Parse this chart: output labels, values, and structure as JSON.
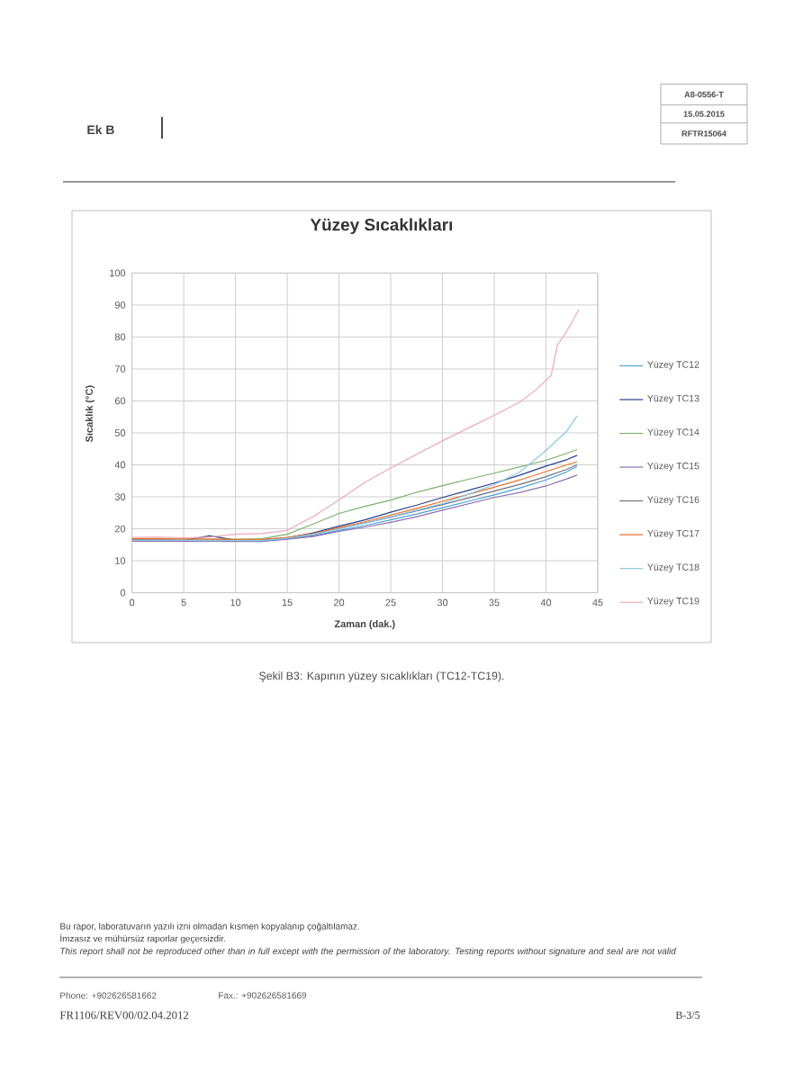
{
  "chart_data": {
    "type": "line",
    "title": "Yüzey Sıcaklıkları",
    "xlabel": "Zaman (dak.)",
    "ylabel": "Sıcaklık (°C)",
    "x": [
      0,
      2.5,
      5,
      7.5,
      10,
      12.5,
      15,
      17.5,
      20,
      22.5,
      25,
      27.5,
      30,
      32.5,
      35,
      37.5,
      40,
      42,
      43
    ],
    "series": [
      {
        "name": "Yüzey TC12",
        "color": "#4f9fd6",
        "values": [
          16.4,
          16.4,
          16.3,
          16.3,
          16.2,
          16.2,
          16.9,
          17.8,
          19.5,
          21,
          22.8,
          24.6,
          26.6,
          28.6,
          30.6,
          32.8,
          35.3,
          37.8,
          39.5
        ]
      },
      {
        "name": "Yüzey TC13",
        "color": "#2a3f8f",
        "values": [
          16.5,
          16.5,
          16.4,
          17.8,
          16.5,
          16.4,
          17.2,
          18.7,
          20.8,
          22.8,
          25.2,
          27.4,
          29.8,
          32,
          34.3,
          36.8,
          39.6,
          41.6,
          43
        ]
      },
      {
        "name": "Yüzey TC14",
        "color": "#7fb070",
        "values": [
          16.6,
          16.6,
          16.5,
          16.5,
          16.7,
          16.9,
          18.3,
          21.5,
          24.8,
          27,
          29,
          31.4,
          33.5,
          35.5,
          37.4,
          39.4,
          41.4,
          43.6,
          44.8
        ]
      },
      {
        "name": "Yüzey TC15",
        "color": "#8c6fb0",
        "values": [
          16.1,
          16.1,
          16.1,
          16.1,
          16.0,
          16.0,
          16.7,
          17.6,
          19.2,
          20.5,
          22,
          23.8,
          25.8,
          27.8,
          29.8,
          31.4,
          33.4,
          35.6,
          36.8
        ]
      },
      {
        "name": "Yüzey TC16",
        "color": "#6f7280",
        "values": [
          16.5,
          16.5,
          16.4,
          16.4,
          16.3,
          16.3,
          17,
          18.2,
          20.1,
          21.8,
          23.6,
          25.6,
          27.6,
          29.6,
          31.8,
          33.9,
          36.3,
          38.6,
          40
        ]
      },
      {
        "name": "Yüzey TC17",
        "color": "#e8702a",
        "values": [
          16.9,
          16.9,
          16.8,
          16.8,
          16.7,
          16.7,
          17.3,
          18.5,
          20.4,
          22.2,
          24.3,
          26.4,
          28.6,
          30.8,
          33,
          35.3,
          37.9,
          40,
          41
        ]
      },
      {
        "name": "Yüzey TC18",
        "color": "#8ec8e8",
        "values": [
          16.4,
          16.4,
          16.4,
          16.3,
          16.3,
          16.3,
          17,
          18.3,
          20,
          21.8,
          23.8,
          25.8,
          27.9,
          30.8,
          33.8,
          37.8,
          44.5,
          50.5,
          55.3
        ]
      },
      {
        "name": "Yüzey TC19",
        "color": "#f0a8b8",
        "x": [
          0,
          2.5,
          5,
          7.5,
          10,
          12.5,
          15,
          17.5,
          20,
          22.5,
          25,
          27.5,
          30,
          32.5,
          35,
          37.5,
          39,
          40.5,
          41.1,
          41.7,
          42.4,
          43.2
        ],
        "values": [
          17.3,
          17.4,
          17.2,
          17.4,
          18.3,
          18.5,
          19.5,
          23.8,
          29,
          34.5,
          39,
          43.3,
          47.5,
          51.5,
          55.5,
          59.7,
          63.4,
          68,
          77.5,
          80.3,
          84,
          88.7
        ]
      }
    ],
    "xlim": [
      0,
      45
    ],
    "ylim": [
      0,
      100
    ],
    "xticks": [
      0,
      5,
      10,
      15,
      20,
      25,
      30,
      35,
      40,
      45
    ],
    "yticks": [
      0,
      10,
      20,
      30,
      40,
      50,
      60,
      70,
      80,
      90,
      100
    ],
    "grid": true,
    "legend": "right",
    "annotations": [
      "Ek B",
      "A8-0556-T",
      "15.05.2015",
      "RFTR15064",
      "Şekil B3: Kapının yüzey sıcaklıkları (TC12-TC19).",
      "Bu rapor, laboratuvarın yazılı izni olmadan kısmen kopyalanıp çoğaltılamaz.",
      "İmzasız ve mühürsüz raporlar geçersizdir.",
      "This report shall not be reproduced other than in full except with the permission of the laboratory. Testing reports without signature and seal are not valid",
      "Phone: +902626581662",
      "Fax.: +902626581669",
      "FR1106/REV00/02.04.2012",
      "B-3/5"
    ]
  }
}
